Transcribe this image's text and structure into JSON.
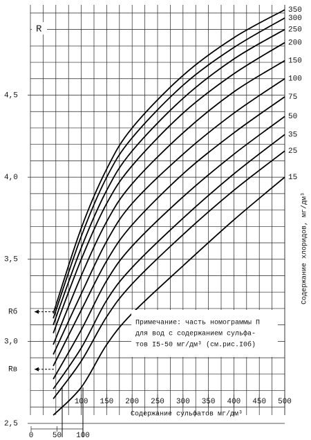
{
  "chart_data": {
    "type": "line",
    "y_label": "R",
    "x_label": "Содержание сульфатов мг/дм³",
    "right_label": "Содержание хлоридов, мг/дм³",
    "note": [
      "Примечание: часть номограммы П",
      "для вод с содержанием сульфа-",
      "тов I5-50 мг/дм³ (см.рис.I0б)"
    ],
    "annotations": [
      {
        "text": "Rб",
        "y": 3.18
      },
      {
        "text": "Rв",
        "y": 2.83
      }
    ],
    "x": [
      45,
      100,
      150,
      200,
      300,
      400,
      500
    ],
    "xlim": [
      0,
      500
    ],
    "xticks": [
      100,
      150,
      200,
      250,
      300,
      350,
      400,
      450,
      500
    ],
    "x2lim": [
      0,
      100
    ],
    "x2ticks": [
      0,
      50,
      100
    ],
    "ylim": [
      2.5,
      5.05
    ],
    "yticks": [
      {
        "value": 2.5,
        "label": "2,5"
      },
      {
        "value": 3.0,
        "label": "3,0"
      },
      {
        "value": 3.5,
        "label": "3,5"
      },
      {
        "value": 4.0,
        "label": "4,0"
      },
      {
        "value": 4.5,
        "label": "4,5"
      }
    ],
    "grid": true,
    "xgrid": [
      0,
      25,
      50,
      75,
      100,
      125,
      150,
      175,
      200,
      225,
      250,
      275,
      300,
      325,
      350,
      375,
      400,
      425,
      450,
      475,
      500
    ],
    "ygrid": [
      2.6,
      2.7,
      2.8,
      2.9,
      3.1,
      3.2,
      3.3,
      3.4,
      3.6,
      3.7,
      3.8,
      3.9,
      4.1,
      4.2,
      4.3,
      4.4,
      4.6,
      4.7,
      4.8,
      4.9,
      5.0
    ],
    "color": "#000000",
    "series": [
      {
        "name": "15",
        "values": [
          2.55,
          2.72,
          2.98,
          3.17,
          3.46,
          3.74,
          4.0
        ]
      },
      {
        "name": "25",
        "values": [
          2.65,
          2.88,
          3.15,
          3.35,
          3.65,
          3.92,
          4.16
        ]
      },
      {
        "name": "35",
        "values": [
          2.71,
          2.96,
          3.25,
          3.45,
          3.75,
          4.02,
          4.26
        ]
      },
      {
        "name": "50",
        "values": [
          2.77,
          3.07,
          3.37,
          3.58,
          3.88,
          4.14,
          4.37
        ]
      },
      {
        "name": "75",
        "values": [
          2.85,
          3.19,
          3.49,
          3.71,
          4.02,
          4.27,
          4.49
        ]
      },
      {
        "name": "100",
        "values": [
          2.92,
          3.29,
          3.61,
          3.84,
          4.14,
          4.39,
          4.6
        ]
      },
      {
        "name": "150",
        "values": [
          2.98,
          3.4,
          3.73,
          3.96,
          4.27,
          4.52,
          4.71
        ]
      },
      {
        "name": "200",
        "values": [
          3.05,
          3.5,
          3.84,
          4.07,
          4.39,
          4.63,
          4.82
        ]
      },
      {
        "name": "250",
        "values": [
          3.1,
          3.57,
          3.92,
          4.16,
          4.48,
          4.72,
          4.9
        ]
      },
      {
        "name": "300",
        "values": [
          3.14,
          3.64,
          4.0,
          4.24,
          4.56,
          4.79,
          4.97
        ]
      },
      {
        "name": "350",
        "values": [
          3.17,
          3.69,
          4.05,
          4.3,
          4.62,
          4.85,
          5.02
        ]
      }
    ]
  }
}
